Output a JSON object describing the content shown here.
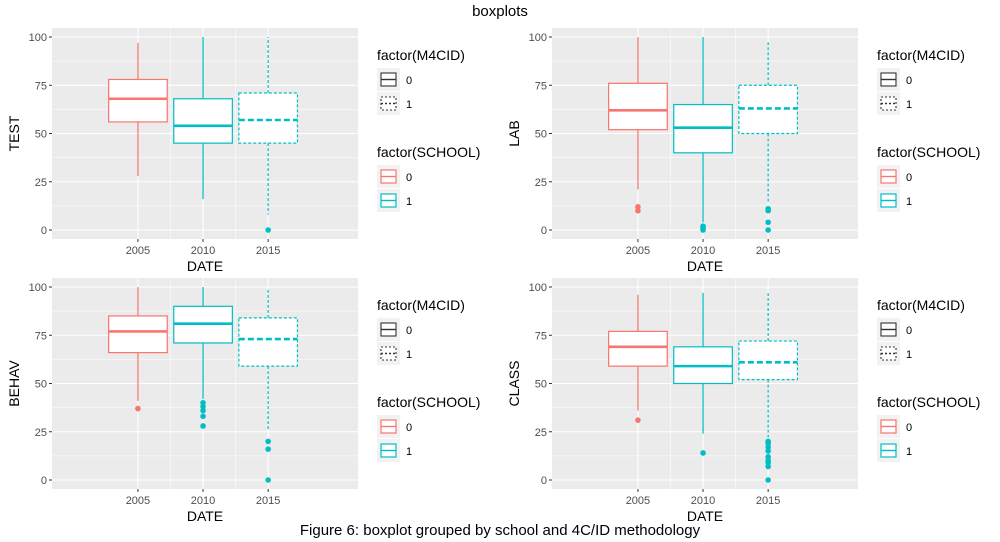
{
  "figure": {
    "title": "boxplots",
    "caption": "Figure 6: boxplot grouped by school and 4C/ID methodology"
  },
  "colors": {
    "school_0": "#f8766d",
    "school_1": "#00bfc4",
    "panel_bg": "#ebebeb",
    "legend_key_bg": "#f2f2f2"
  },
  "legend": {
    "m4cid": {
      "title": "factor(M4CID)",
      "items": [
        "0",
        "1"
      ]
    },
    "school": {
      "title": "factor(SCHOOL)",
      "items": [
        "0",
        "1"
      ]
    }
  },
  "chart_data": [
    {
      "type": "boxplot",
      "title": "",
      "ylabel": "TEST",
      "xlabel": "DATE",
      "ylim": [
        0,
        100
      ],
      "yticks": [
        0,
        25,
        50,
        75,
        100
      ],
      "xticks": [
        2005,
        2010,
        2015
      ],
      "grid": true,
      "legend_position": "right",
      "boxes": [
        {
          "date": "2005",
          "school": "0",
          "m4cid": "0",
          "whisker_low": 28,
          "q1": 56,
          "median": 68,
          "q3": 78,
          "whisker_high": 97,
          "outliers": []
        },
        {
          "date": "2010",
          "school": "1",
          "m4cid": "0",
          "whisker_low": 16,
          "q1": 45,
          "median": 54,
          "q3": 68,
          "whisker_high": 100,
          "outliers": []
        },
        {
          "date": "2015",
          "school": "1",
          "m4cid": "1",
          "whisker_low": 8,
          "q1": 45,
          "median": 57,
          "q3": 71,
          "whisker_high": 100,
          "outliers": [
            0
          ]
        }
      ]
    },
    {
      "type": "boxplot",
      "title": "",
      "ylabel": "LAB",
      "xlabel": "DATE",
      "ylim": [
        0,
        100
      ],
      "yticks": [
        0,
        25,
        50,
        75,
        100
      ],
      "xticks": [
        2005,
        2010,
        2015
      ],
      "grid": true,
      "legend_position": "right",
      "boxes": [
        {
          "date": "2005",
          "school": "0",
          "m4cid": "0",
          "whisker_low": 21,
          "q1": 52,
          "median": 62,
          "q3": 76,
          "whisker_high": 100,
          "outliers": [
            10,
            12
          ]
        },
        {
          "date": "2010",
          "school": "1",
          "m4cid": "0",
          "whisker_low": 4,
          "q1": 40,
          "median": 53,
          "q3": 65,
          "whisker_high": 100,
          "outliers": [
            0,
            1,
            2
          ]
        },
        {
          "date": "2015",
          "school": "1",
          "m4cid": "1",
          "whisker_low": 14,
          "q1": 50,
          "median": 63,
          "q3": 75,
          "whisker_high": 98,
          "outliers": [
            0,
            4,
            10,
            11
          ]
        }
      ]
    },
    {
      "type": "boxplot",
      "title": "",
      "ylabel": "BEHAV",
      "xlabel": "DATE",
      "ylim": [
        0,
        100
      ],
      "yticks": [
        0,
        25,
        50,
        75,
        100
      ],
      "xticks": [
        2005,
        2010,
        2015
      ],
      "grid": true,
      "legend_position": "right",
      "boxes": [
        {
          "date": "2005",
          "school": "0",
          "m4cid": "0",
          "whisker_low": 41,
          "q1": 66,
          "median": 77,
          "q3": 85,
          "whisker_high": 100,
          "outliers": [
            37
          ]
        },
        {
          "date": "2010",
          "school": "1",
          "m4cid": "0",
          "whisker_low": 42,
          "q1": 71,
          "median": 81,
          "q3": 90,
          "whisker_high": 100,
          "outliers": [
            28,
            33,
            36,
            38,
            40
          ]
        },
        {
          "date": "2015",
          "school": "1",
          "m4cid": "1",
          "whisker_low": 26,
          "q1": 59,
          "median": 73,
          "q3": 84,
          "whisker_high": 99,
          "outliers": [
            0,
            16,
            20
          ]
        }
      ]
    },
    {
      "type": "boxplot",
      "title": "",
      "ylabel": "CLASS",
      "xlabel": "DATE",
      "ylim": [
        0,
        100
      ],
      "yticks": [
        0,
        25,
        50,
        75,
        100
      ],
      "xticks": [
        2005,
        2010,
        2015
      ],
      "grid": true,
      "legend_position": "right",
      "boxes": [
        {
          "date": "2005",
          "school": "0",
          "m4cid": "0",
          "whisker_low": 36,
          "q1": 59,
          "median": 69,
          "q3": 77,
          "whisker_high": 96,
          "outliers": [
            31
          ]
        },
        {
          "date": "2010",
          "school": "1",
          "m4cid": "0",
          "whisker_low": 24,
          "q1": 50,
          "median": 59,
          "q3": 69,
          "whisker_high": 97,
          "outliers": [
            14
          ]
        },
        {
          "date": "2015",
          "school": "1",
          "m4cid": "1",
          "whisker_low": 22,
          "q1": 52,
          "median": 61,
          "q3": 72,
          "whisker_high": 98,
          "outliers": [
            0,
            7,
            9,
            10,
            12,
            15,
            17,
            19,
            20
          ]
        }
      ]
    }
  ]
}
